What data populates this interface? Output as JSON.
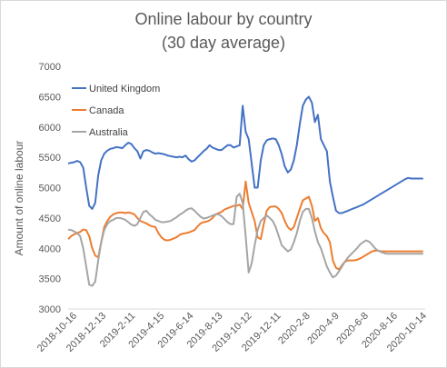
{
  "chart_data": {
    "type": "line",
    "title": "Online labour by country",
    "subtitle": "(30 day average)",
    "ylabel": "Amount of online labour",
    "xlabel": "",
    "ylim": [
      3000,
      7000
    ],
    "yticks": [
      3000,
      3500,
      4000,
      4500,
      5000,
      5500,
      6000,
      6500,
      7000
    ],
    "grid": false,
    "legend_position": "top-left",
    "x_tick_labels": [
      "2018-10-16",
      "2018-12-13",
      "2019-2-11",
      "2019-4-15",
      "2019-6-14",
      "2019-8-13",
      "2019-10-12",
      "2019-12-11",
      "2020-2-8",
      "2020-4-9",
      "2020-6-8",
      "2020-8-16",
      "2020-10-14"
    ],
    "x_index": [
      0,
      6,
      12,
      18,
      24,
      30,
      36,
      42,
      48,
      54,
      60,
      66,
      72,
      78,
      84,
      90,
      96,
      102,
      108,
      114,
      120,
      126,
      132,
      138,
      144,
      150,
      156,
      162,
      168,
      174,
      180,
      186,
      192,
      198,
      204,
      210,
      216,
      222,
      228,
      234,
      240,
      246,
      252,
      258,
      264,
      270,
      276,
      282,
      288,
      294,
      300,
      306,
      312,
      318,
      324,
      330,
      336,
      342,
      348,
      354,
      360,
      366,
      372,
      378,
      384,
      390,
      396,
      402,
      408,
      414,
      420,
      426,
      432,
      438,
      444,
      450,
      456,
      462,
      468,
      474,
      480,
      486,
      492,
      498,
      504,
      510,
      516,
      522,
      528,
      534,
      540,
      546,
      552,
      558,
      564,
      570,
      576,
      582,
      588,
      594,
      600,
      606,
      612,
      618,
      624,
      630,
      636,
      642,
      648,
      654,
      660,
      666,
      672,
      678,
      684,
      690,
      696,
      702,
      708
    ],
    "x_max": 712,
    "series": [
      {
        "name": "United Kingdom",
        "color": "#4472C4",
        "values": [
          5400,
          5410,
          5420,
          5440,
          5420,
          5330,
          5000,
          4700,
          4650,
          4750,
          5200,
          5450,
          5560,
          5610,
          5640,
          5650,
          5670,
          5660,
          5650,
          5700,
          5740,
          5720,
          5650,
          5600,
          5480,
          5600,
          5620,
          5610,
          5580,
          5560,
          5570,
          5560,
          5550,
          5530,
          5520,
          5510,
          5500,
          5510,
          5500,
          5530,
          5470,
          5430,
          5450,
          5500,
          5550,
          5600,
          5640,
          5700,
          5660,
          5640,
          5620,
          5620,
          5660,
          5700,
          5700,
          5660,
          5680,
          5700,
          6350,
          5920,
          5800,
          5400,
          5000,
          5000,
          5450,
          5700,
          5780,
          5800,
          5810,
          5800,
          5700,
          5550,
          5350,
          5250,
          5300,
          5450,
          5700,
          6050,
          6350,
          6450,
          6500,
          6400,
          6080,
          6200,
          5800,
          5700,
          5600,
          5100,
          4850,
          4620,
          4580,
          4580,
          4600,
          4620,
          4640,
          4660,
          4680,
          4700,
          4720,
          4750,
          4780,
          4810,
          4840,
          4870,
          4900,
          4930,
          4960,
          4990,
          5020,
          5050,
          5080,
          5110,
          5140,
          5160,
          5150,
          5150,
          5150,
          5150,
          5150
        ]
      },
      {
        "name": "Canada",
        "color": "#ED7D31",
        "values": [
          4150,
          4200,
          4230,
          4250,
          4270,
          4310,
          4300,
          4200,
          4000,
          3880,
          3850,
          4100,
          4350,
          4450,
          4520,
          4560,
          4580,
          4590,
          4590,
          4580,
          4590,
          4580,
          4560,
          4500,
          4450,
          4430,
          4410,
          4380,
          4360,
          4350,
          4250,
          4180,
          4140,
          4130,
          4140,
          4160,
          4180,
          4220,
          4240,
          4250,
          4260,
          4280,
          4300,
          4360,
          4410,
          4430,
          4440,
          4460,
          4500,
          4560,
          4580,
          4600,
          4640,
          4660,
          4680,
          4700,
          4700,
          4720,
          4650,
          5100,
          4750,
          4600,
          4450,
          4180,
          4150,
          4400,
          4620,
          4680,
          4690,
          4690,
          4650,
          4580,
          4450,
          4350,
          4300,
          4350,
          4500,
          4650,
          4790,
          4820,
          4850,
          4700,
          4450,
          4500,
          4330,
          4250,
          4200,
          4100,
          3800,
          3680,
          3650,
          3720,
          3780,
          3800,
          3800,
          3800,
          3810,
          3830,
          3860,
          3890,
          3920,
          3950,
          3960,
          3960,
          3950,
          3950,
          3950,
          3950,
          3950,
          3950,
          3950,
          3950,
          3950,
          3950,
          3950,
          3950,
          3950,
          3950,
          3950
        ]
      },
      {
        "name": "Australia",
        "color": "#A5A5A5",
        "values": [
          4310,
          4300,
          4280,
          4250,
          4200,
          4000,
          3700,
          3400,
          3380,
          3450,
          3800,
          4100,
          4300,
          4400,
          4450,
          4470,
          4500,
          4500,
          4490,
          4470,
          4430,
          4390,
          4370,
          4400,
          4500,
          4600,
          4620,
          4560,
          4520,
          4470,
          4450,
          4430,
          4430,
          4440,
          4450,
          4480,
          4510,
          4550,
          4580,
          4620,
          4650,
          4660,
          4620,
          4570,
          4520,
          4490,
          4500,
          4520,
          4540,
          4560,
          4560,
          4530,
          4480,
          4430,
          4400,
          4400,
          4850,
          4900,
          4750,
          4200,
          3600,
          3750,
          4050,
          4300,
          4450,
          4500,
          4540,
          4500,
          4450,
          4350,
          4200,
          4050,
          4000,
          3950,
          3980,
          4100,
          4250,
          4450,
          4600,
          4650,
          4650,
          4500,
          4280,
          4100,
          4000,
          3850,
          3700,
          3600,
          3520,
          3550,
          3620,
          3700,
          3780,
          3850,
          3900,
          3950,
          4000,
          4060,
          4100,
          4130,
          4110,
          4060,
          4000,
          3960,
          3940,
          3920,
          3910,
          3910,
          3910,
          3910,
          3910,
          3910,
          3910,
          3910,
          3910,
          3910,
          3910,
          3910,
          3910
        ]
      }
    ]
  }
}
